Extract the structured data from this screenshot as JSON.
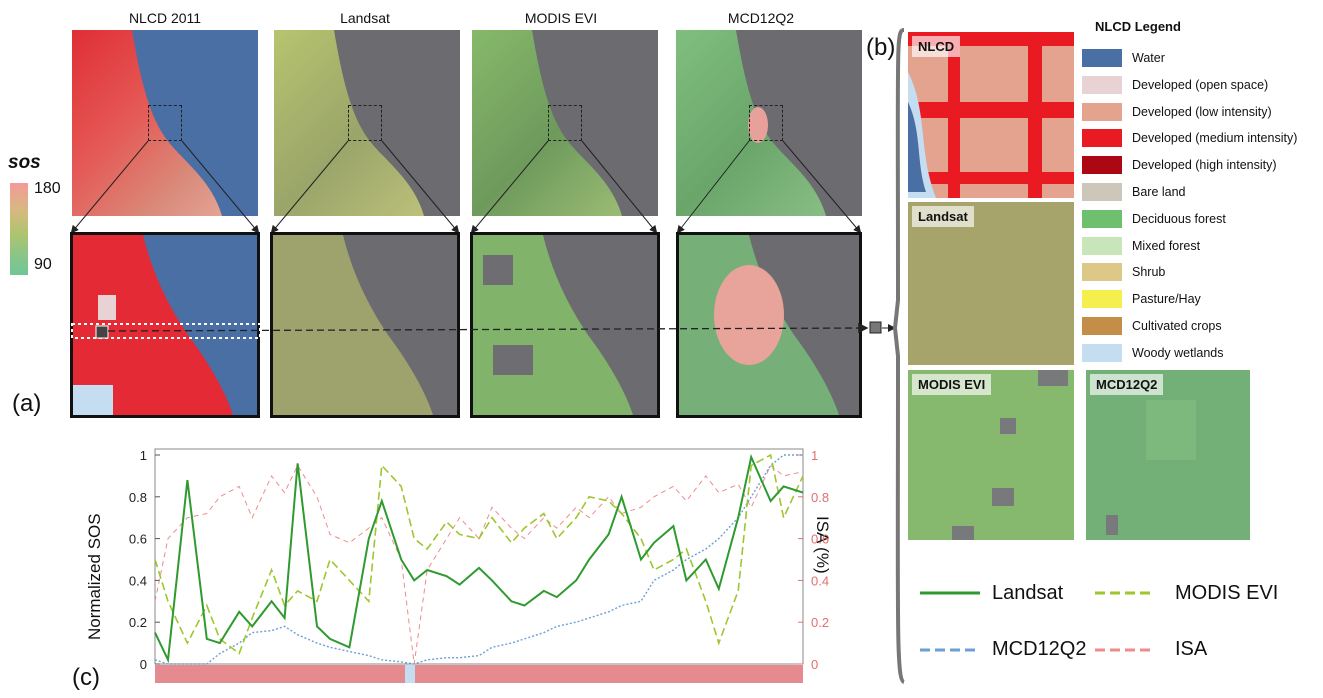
{
  "panels": {
    "a": "(a)",
    "b": "(b)",
    "c": "(c)"
  },
  "map_titles": [
    "NLCD 2011",
    "Landsat",
    "MODIS EVI",
    "MCD12Q2"
  ],
  "sos_scale": {
    "title": "sos",
    "max": "180",
    "min": "90"
  },
  "inset_labels": {
    "nlcd": "NLCD",
    "landsat": "Landsat",
    "modis": "MODIS EVI",
    "mcd": "MCD12Q2"
  },
  "nlcd_legend": {
    "title": "NLCD Legend",
    "items": [
      {
        "label": "Water",
        "color": "#4a6fa5"
      },
      {
        "label": "Developed (open space)",
        "color": "#e8d2d4"
      },
      {
        "label": "Developed (low intensity)",
        "color": "#e3a38f"
      },
      {
        "label": "Developed (medium intensity)",
        "color": "#ea1a23"
      },
      {
        "label": "Developed (high intensity)",
        "color": "#ab0813"
      },
      {
        "label": "Bare land",
        "color": "#cdc6bb"
      },
      {
        "label": "Deciduous forest",
        "color": "#6ebf6e"
      },
      {
        "label": "Mixed forest",
        "color": "#c9e6bb"
      },
      {
        "label": "Shrub",
        "color": "#dcc887"
      },
      {
        "label": "Pasture/Hay",
        "color": "#f4ef4c"
      },
      {
        "label": "Cultivated crops",
        "color": "#c58e48"
      },
      {
        "label": "Woody wetlands",
        "color": "#c4ddf0"
      }
    ]
  },
  "line_legend": {
    "landsat": "Landsat",
    "modis": "MODIS EVI",
    "mcd": "MCD12Q2",
    "isa": "ISA"
  },
  "chart_data": {
    "type": "line",
    "ylabel": "Normalized SOS",
    "y2label": "ISA (%)",
    "ylim": [
      0,
      1
    ],
    "y2lim": [
      0,
      1
    ],
    "yticks": [
      "0",
      "0.2",
      "0.4",
      "0.6",
      "0.8",
      "1"
    ],
    "y2ticks": [
      "0",
      "0.2",
      "0.4",
      "0.6",
      "0.8",
      "1"
    ],
    "x": [
      0,
      0.02,
      0.05,
      0.08,
      0.1,
      0.13,
      0.15,
      0.18,
      0.2,
      0.22,
      0.25,
      0.27,
      0.3,
      0.33,
      0.35,
      0.38,
      0.4,
      0.42,
      0.45,
      0.47,
      0.5,
      0.52,
      0.55,
      0.57,
      0.6,
      0.62,
      0.65,
      0.67,
      0.7,
      0.72,
      0.75,
      0.77,
      0.8,
      0.82,
      0.85,
      0.87,
      0.9,
      0.92,
      0.95,
      0.97,
      1.0
    ],
    "series": [
      {
        "name": "Landsat",
        "color": "#2f9a2f",
        "values": [
          0.15,
          0.02,
          0.88,
          0.12,
          0.1,
          0.25,
          0.18,
          0.3,
          0.22,
          0.96,
          0.18,
          0.12,
          0.08,
          0.6,
          0.78,
          0.5,
          0.4,
          0.45,
          0.42,
          0.38,
          0.46,
          0.4,
          0.3,
          0.28,
          0.35,
          0.32,
          0.4,
          0.5,
          0.62,
          0.8,
          0.5,
          0.58,
          0.66,
          0.4,
          0.5,
          0.36,
          0.7,
          0.99,
          0.78,
          0.85,
          0.82
        ]
      },
      {
        "name": "MODIS EVI",
        "color": "#9ec62f",
        "values": [
          0.5,
          0.3,
          0.1,
          0.28,
          0.12,
          0.05,
          0.22,
          0.45,
          0.28,
          0.35,
          0.3,
          0.5,
          0.4,
          0.3,
          0.95,
          0.85,
          0.6,
          0.55,
          0.68,
          0.62,
          0.6,
          0.7,
          0.58,
          0.65,
          0.72,
          0.6,
          0.7,
          0.8,
          0.78,
          0.72,
          0.6,
          0.45,
          0.5,
          0.55,
          0.3,
          0.1,
          0.35,
          0.95,
          1.0,
          0.7,
          0.9
        ]
      },
      {
        "name": "MCD12Q2",
        "color": "#6e9fd4",
        "values": [
          0.02,
          0.0,
          0.0,
          0.0,
          0.05,
          0.1,
          0.15,
          0.16,
          0.18,
          0.14,
          0.1,
          0.08,
          0.06,
          0.04,
          0.02,
          0.01,
          0.0,
          0.02,
          0.03,
          0.03,
          0.04,
          0.08,
          0.1,
          0.12,
          0.15,
          0.18,
          0.2,
          0.22,
          0.25,
          0.28,
          0.3,
          0.4,
          0.45,
          0.5,
          0.55,
          0.6,
          0.7,
          0.8,
          0.95,
          1.0,
          1.0
        ]
      },
      {
        "name": "ISA",
        "color": "#f08b8b",
        "values": [
          0.3,
          0.6,
          0.7,
          0.72,
          0.8,
          0.85,
          0.7,
          0.9,
          0.82,
          0.95,
          0.8,
          0.62,
          0.58,
          0.65,
          0.7,
          0.5,
          0.0,
          0.45,
          0.6,
          0.7,
          0.6,
          0.75,
          0.65,
          0.6,
          0.7,
          0.65,
          0.75,
          0.7,
          0.8,
          0.72,
          0.75,
          0.8,
          0.85,
          0.78,
          0.9,
          0.82,
          0.86,
          0.75,
          0.95,
          0.9,
          0.92
        ]
      }
    ]
  }
}
